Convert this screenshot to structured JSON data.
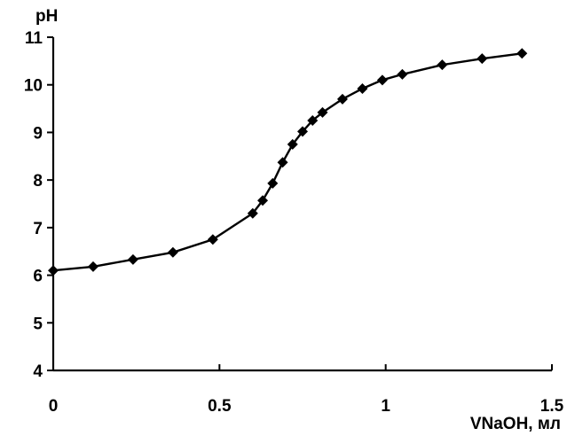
{
  "chart_data": {
    "type": "line",
    "title": "",
    "xlabel": "VNaOH, мл",
    "ylabel": "pH",
    "xlim": [
      0,
      1.5
    ],
    "ylim": [
      4,
      11
    ],
    "x_ticks": [
      0,
      0.5,
      1,
      1.5
    ],
    "x_tick_labels": [
      "0",
      "0.5",
      "1",
      "1.5"
    ],
    "y_ticks": [
      4,
      5,
      6,
      7,
      8,
      9,
      10,
      11
    ],
    "y_tick_labels": [
      "4",
      "5",
      "6",
      "7",
      "8",
      "9",
      "10",
      "11"
    ],
    "grid": false,
    "legend": "none",
    "marker": "diamond",
    "color": "#000000",
    "series": [
      {
        "x": [
          0,
          0.12,
          0.24,
          0.36,
          0.48,
          0.6,
          0.63,
          0.66,
          0.69,
          0.72,
          0.75,
          0.78,
          0.81,
          0.87,
          0.93,
          0.99,
          1.05,
          1.17,
          1.29,
          1.41
        ],
        "y": [
          6.1,
          6.18,
          6.33,
          6.48,
          6.75,
          7.3,
          7.57,
          7.93,
          8.37,
          8.75,
          9.02,
          9.25,
          9.42,
          9.7,
          9.92,
          10.1,
          10.22,
          10.42,
          10.55,
          10.66
        ]
      }
    ]
  }
}
